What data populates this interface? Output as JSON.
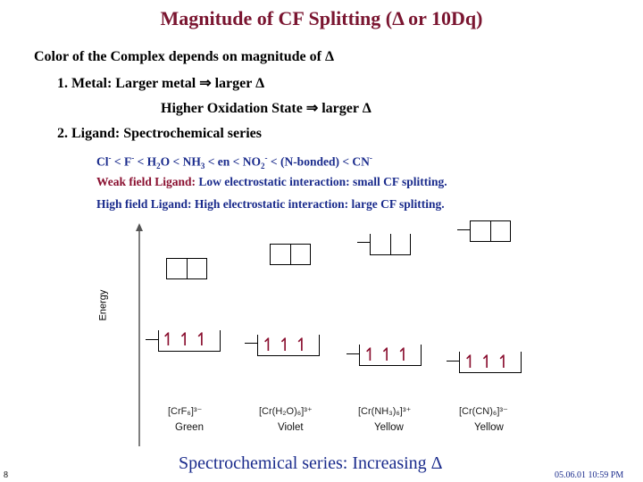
{
  "title": "Magnitude of CF Splitting (Δ or 10Dq)",
  "lines": {
    "intro": "Color of the Complex depends on magnitude of Δ",
    "metal": "1. Metal:  Larger metal ⇒ larger Δ",
    "oxidation": "Higher Oxidation State ⇒ larger Δ",
    "ligand": "2. Ligand: Spectrochemical series"
  },
  "series": {
    "text_a": "Cl",
    "text_a_sup": "-",
    "text_b": " < F",
    "text_b_sup": "-",
    "text_c": " < H",
    "text_c_sub": "2",
    "text_d": "O < NH",
    "text_d_sub": "3",
    "text_e": " < en < NO",
    "text_e_sub": "2",
    "text_e_sup": "-",
    "text_f": " < (N-bonded) < CN",
    "text_f_sup": "-"
  },
  "weak": {
    "label": "Weak field Ligand:",
    "desc": " Low electrostatic interaction: small CF splitting."
  },
  "strong": {
    "label": "High field Ligand:",
    "desc": " High electrostatic interaction: large CF splitting."
  },
  "diagram": {
    "axis_label": "Energy",
    "complexes": [
      {
        "formula": "[CrF₆]³⁻",
        "color": "Green",
        "electrons": "↿↿↿"
      },
      {
        "formula": "[Cr(H₂O)₆]³⁺",
        "color": "Violet",
        "electrons": "↿↿↿"
      },
      {
        "formula": "[Cr(NH₃)₆]³⁺",
        "color": "Yellow",
        "electrons": "↿↿↿"
      },
      {
        "formula": "[Cr(CN)₆]³⁻",
        "color": "Yellow",
        "electrons": "↿↿↿"
      }
    ]
  },
  "footer": "Spectrochemical series:  Increasing Δ",
  "slide_number": "8",
  "datestamp": "05.06.01 10:59 PM"
}
